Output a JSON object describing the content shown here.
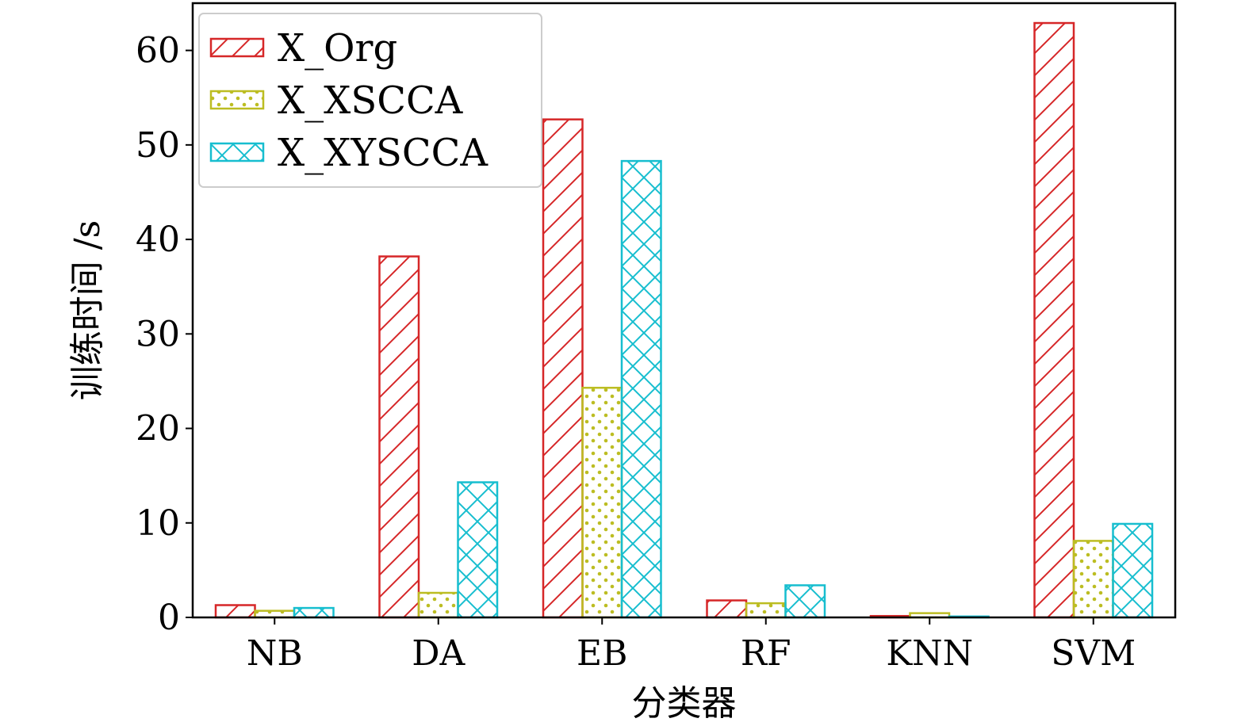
{
  "chart_data": {
    "type": "bar",
    "xlabel": "分类器",
    "ylabel": "训练时间 /s",
    "categories": [
      "NB",
      "DA",
      "EB",
      "RF",
      "KNN",
      "SVM"
    ],
    "ylim": [
      0,
      65
    ],
    "yticks": [
      0,
      10,
      20,
      30,
      40,
      50,
      60
    ],
    "grid": false,
    "legend_position": "top-left",
    "series": [
      {
        "name": "X_Org",
        "color": "#d62728",
        "pattern": "diagonal-hatch",
        "values": [
          1.3,
          38.2,
          52.7,
          1.8,
          0.15,
          62.9
        ]
      },
      {
        "name": "X_XSCCA",
        "color": "#bcbd22",
        "pattern": "dots",
        "values": [
          0.7,
          2.6,
          24.3,
          1.5,
          0.45,
          8.1
        ]
      },
      {
        "name": "X_XYSCCA",
        "color": "#17becf",
        "pattern": "cross-hatch",
        "values": [
          1.0,
          14.3,
          48.3,
          3.4,
          0.1,
          9.9
        ]
      }
    ]
  }
}
